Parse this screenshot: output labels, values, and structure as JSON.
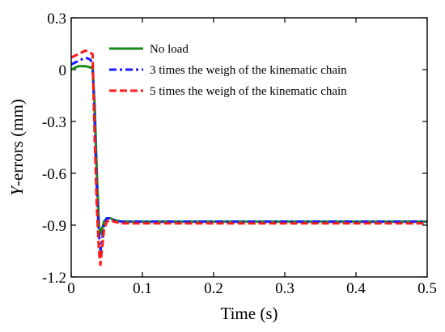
{
  "chart_data": {
    "type": "line",
    "title": "",
    "xlabel": "Time (s)",
    "ylabel_italic": "Y",
    "ylabel_rest": "-errors (mm)",
    "xlim": [
      0,
      0.5
    ],
    "ylim": [
      -1.2,
      0.3
    ],
    "x_ticks": [
      0,
      0.1,
      0.2,
      0.3,
      0.4,
      0.5
    ],
    "x_tick_labels": [
      "0",
      "0.1",
      "0.2",
      "0.3",
      "0.4",
      "0.5"
    ],
    "y_ticks": [
      0.3,
      0,
      -0.3,
      -0.6,
      -0.9,
      -1.2
    ],
    "y_tick_labels": [
      "0.3",
      "0",
      "-0.3",
      "-0.6",
      "-0.9",
      "-1.2"
    ],
    "grid": false,
    "legend_position": "top-right",
    "series": [
      {
        "name": "No load",
        "color": "#1a8a1a",
        "dash": "solid",
        "x": [
          0,
          0.01,
          0.02,
          0.03,
          0.033,
          0.036,
          0.039,
          0.041,
          0.043,
          0.046,
          0.05,
          0.055,
          0.06,
          0.07,
          0.08,
          0.1,
          0.2,
          0.3,
          0.4,
          0.5
        ],
        "y": [
          0.0,
          0.02,
          0.02,
          0.01,
          -0.2,
          -0.6,
          -0.9,
          -0.95,
          -0.93,
          -0.88,
          -0.86,
          -0.86,
          -0.87,
          -0.88,
          -0.88,
          -0.88,
          -0.88,
          -0.88,
          -0.88,
          -0.88
        ]
      },
      {
        "name": "3 times the weigh of the kinematic chain",
        "color": "#1a1aff",
        "dash": "dashdot",
        "x": [
          0,
          0.01,
          0.02,
          0.026,
          0.03,
          0.033,
          0.036,
          0.039,
          0.041,
          0.043,
          0.046,
          0.05,
          0.055,
          0.06,
          0.07,
          0.08,
          0.1,
          0.2,
          0.3,
          0.4,
          0.5
        ],
        "y": [
          0.03,
          0.05,
          0.07,
          0.06,
          0.04,
          -0.3,
          -0.7,
          -0.95,
          -1.05,
          -1.0,
          -0.9,
          -0.86,
          -0.86,
          -0.87,
          -0.88,
          -0.88,
          -0.88,
          -0.88,
          -0.88,
          -0.88,
          -0.88
        ]
      },
      {
        "name": "5 times the weigh of the kinematic chain",
        "color": "#ff1a1a",
        "dash": "dashed",
        "x": [
          0,
          0.01,
          0.02,
          0.026,
          0.03,
          0.033,
          0.036,
          0.039,
          0.041,
          0.043,
          0.046,
          0.05,
          0.055,
          0.06,
          0.07,
          0.08,
          0.1,
          0.2,
          0.3,
          0.4,
          0.5
        ],
        "y": [
          0.07,
          0.09,
          0.11,
          0.1,
          0.09,
          -0.4,
          -0.8,
          -1.05,
          -1.13,
          -1.05,
          -0.93,
          -0.88,
          -0.87,
          -0.88,
          -0.89,
          -0.89,
          -0.89,
          -0.89,
          -0.89,
          -0.89,
          -0.89
        ]
      }
    ]
  }
}
